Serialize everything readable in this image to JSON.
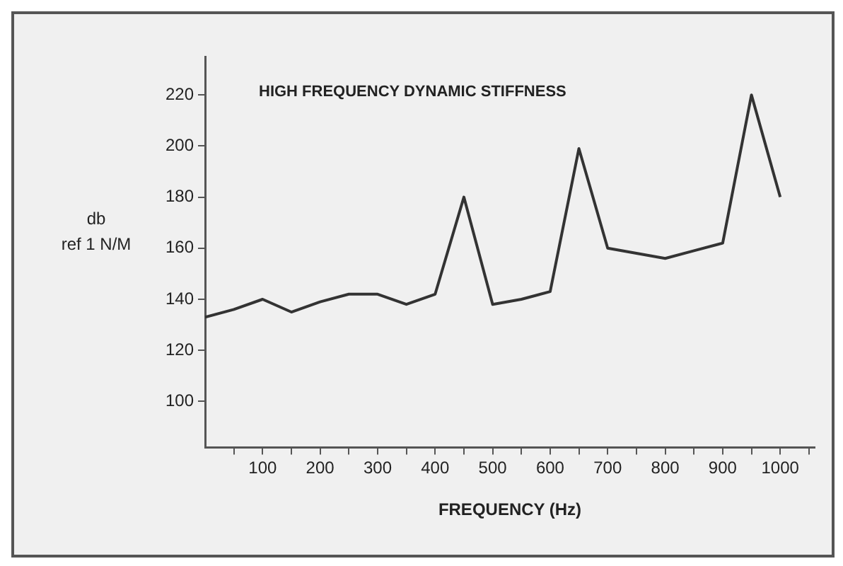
{
  "chart_data": {
    "type": "line",
    "title": "HIGH FREQUENCY DYNAMIC STIFFNESS",
    "xlabel": "FREQUENCY (Hz)",
    "ylabel": "db\nref 1 N/M",
    "x": [
      0,
      50,
      100,
      150,
      200,
      250,
      300,
      350,
      400,
      450,
      500,
      550,
      600,
      650,
      700,
      750,
      800,
      850,
      900,
      950,
      1000
    ],
    "series": [
      {
        "color": "#333333",
        "values": [
          133,
          136,
          140,
          135,
          139,
          142,
          142,
          138,
          142,
          180,
          138,
          140,
          143,
          199,
          160,
          158,
          156,
          159,
          162,
          220,
          180
        ]
      }
    ],
    "xlim": [
      0,
      1060
    ],
    "xticks": [
      {
        "value": 50,
        "label": null
      },
      100,
      {
        "value": 150,
        "label": null
      },
      200,
      {
        "value": 250,
        "label": null
      },
      300,
      {
        "value": 350,
        "label": null
      },
      400,
      {
        "value": 450,
        "label": null
      },
      500,
      {
        "value": 550,
        "label": null
      },
      600,
      {
        "value": 650,
        "label": null
      },
      700,
      {
        "value": 750,
        "label": null
      },
      800,
      {
        "value": 850,
        "label": null
      },
      900,
      {
        "value": 950,
        "label": null
      },
      1000,
      {
        "value": 1050,
        "label": null
      }
    ],
    "ylim": [
      82,
      235
    ],
    "yticks": [
      100,
      120,
      140,
      160,
      180,
      200,
      220
    ],
    "grid": false,
    "legend": false,
    "marker": "none",
    "line_style": "solid"
  }
}
